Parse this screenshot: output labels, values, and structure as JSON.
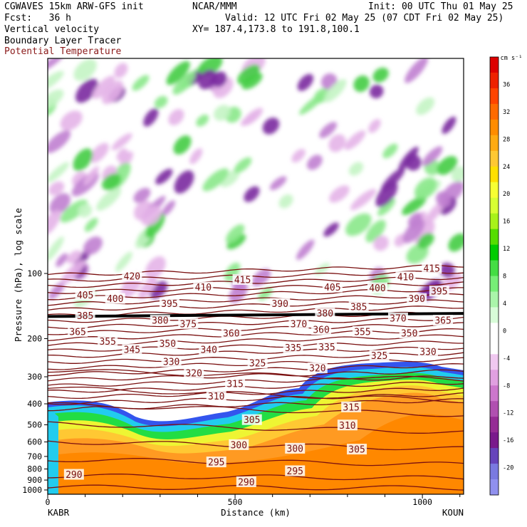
{
  "header": {
    "line1_left": "CGWAVES 15km ARW-GFS init",
    "line1_mid": "NCAR/MMM",
    "line1_right": "Init: 00 UTC Thu 01 May 25",
    "line2_left": "Fcst:   36 h",
    "line2_right": "Valid: 12 UTC Fri 02 May 25 (07 CDT Fri 02 May 25)",
    "line3_left": "Vertical velocity",
    "line3_right": "XY= 187.4,173.8 to 191.8,100.1",
    "line4_left": "Boundary Layer Tracer",
    "line5_left": "Potential Temperature"
  },
  "colors": {
    "theta": "#7a1010",
    "tropopause": "#000000",
    "text": "#000000"
  },
  "chart_data": {
    "type": "heatmap",
    "title": "",
    "xlabel": "Distance (km)",
    "ylabel": "Pressure (hPa), log scale",
    "x_range": [
      0,
      1110
    ],
    "y_range": [
      1000,
      10
    ],
    "y_scale": "log",
    "x_ticks": [
      0,
      500,
      1000
    ],
    "y_ticks": [
      100,
      200,
      300,
      400,
      500,
      600,
      700,
      800,
      900,
      1000
    ],
    "endpoint_labels": {
      "left": "KABR",
      "right": "KOUN"
    },
    "colorbar": {
      "unit": "cm s⁻¹",
      "ticks": [
        36,
        32,
        28,
        24,
        20,
        16,
        12,
        8,
        4,
        0,
        -4,
        -8,
        -12,
        -16,
        -20
      ],
      "colors": [
        "#dd0000",
        "#ee2200",
        "#ff4400",
        "#ff6a00",
        "#ff8c00",
        "#ffaa11",
        "#ffc833",
        "#ffe000",
        "#f7ff33",
        "#d8ff33",
        "#a8f21a",
        "#55dd00",
        "#00cc00",
        "#44dd44",
        "#77ee77",
        "#aaf5aa",
        "#d8fcd8",
        "#ffffff",
        "#ffffff",
        "#f0c8f0",
        "#e0a0e0",
        "#cc77cc",
        "#b050b0",
        "#952c95",
        "#7a1a8c",
        "#6644bb",
        "#7a7ae0",
        "#9090ee"
      ]
    },
    "theta_labels": [
      {
        "t": "420",
        "x": 225,
        "p": 103
      },
      {
        "t": "415",
        "x": 520,
        "p": 107
      },
      {
        "t": "415",
        "x": 1025,
        "p": 95
      },
      {
        "t": "410",
        "x": 415,
        "p": 116
      },
      {
        "t": "410",
        "x": 955,
        "p": 104
      },
      {
        "t": "405",
        "x": 100,
        "p": 126
      },
      {
        "t": "405",
        "x": 760,
        "p": 116
      },
      {
        "t": "400",
        "x": 180,
        "p": 131
      },
      {
        "t": "400",
        "x": 880,
        "p": 117
      },
      {
        "t": "395",
        "x": 325,
        "p": 138
      },
      {
        "t": "395",
        "x": 1045,
        "p": 121
      },
      {
        "t": "390",
        "x": 620,
        "p": 138
      },
      {
        "t": "390",
        "x": 985,
        "p": 131
      },
      {
        "t": "385",
        "x": 100,
        "p": 157
      },
      {
        "t": "385",
        "x": 830,
        "p": 143
      },
      {
        "t": "380",
        "x": 300,
        "p": 165
      },
      {
        "t": "380",
        "x": 740,
        "p": 153
      },
      {
        "t": "375",
        "x": 375,
        "p": 171
      },
      {
        "t": "370",
        "x": 670,
        "p": 171
      },
      {
        "t": "370",
        "x": 935,
        "p": 161
      },
      {
        "t": "365",
        "x": 80,
        "p": 186
      },
      {
        "t": "365",
        "x": 1055,
        "p": 165
      },
      {
        "t": "360",
        "x": 490,
        "p": 189
      },
      {
        "t": "360",
        "x": 730,
        "p": 182
      },
      {
        "t": "355",
        "x": 160,
        "p": 206
      },
      {
        "t": "355",
        "x": 840,
        "p": 186
      },
      {
        "t": "350",
        "x": 320,
        "p": 211
      },
      {
        "t": "350",
        "x": 965,
        "p": 189
      },
      {
        "t": "345",
        "x": 225,
        "p": 225
      },
      {
        "t": "340",
        "x": 430,
        "p": 225
      },
      {
        "t": "335",
        "x": 655,
        "p": 221
      },
      {
        "t": "335",
        "x": 745,
        "p": 219
      },
      {
        "t": "330",
        "x": 1015,
        "p": 230
      },
      {
        "t": "330",
        "x": 330,
        "p": 256
      },
      {
        "t": "325",
        "x": 560,
        "p": 260
      },
      {
        "t": "325",
        "x": 885,
        "p": 240
      },
      {
        "t": "320",
        "x": 390,
        "p": 289
      },
      {
        "t": "320",
        "x": 720,
        "p": 274
      },
      {
        "t": "315",
        "x": 500,
        "p": 324
      },
      {
        "t": "315",
        "x": 810,
        "p": 415
      },
      {
        "t": "310",
        "x": 450,
        "p": 370
      },
      {
        "t": "310",
        "x": 800,
        "p": 503
      },
      {
        "t": "305",
        "x": 545,
        "p": 475
      },
      {
        "t": "305",
        "x": 825,
        "p": 650
      },
      {
        "t": "300",
        "x": 510,
        "p": 620
      },
      {
        "t": "300",
        "x": 660,
        "p": 644
      },
      {
        "t": "295",
        "x": 450,
        "p": 745
      },
      {
        "t": "295",
        "x": 660,
        "p": 818
      },
      {
        "t": "290",
        "x": 70,
        "p": 850
      },
      {
        "t": "290",
        "x": 530,
        "p": 920
      }
    ]
  }
}
